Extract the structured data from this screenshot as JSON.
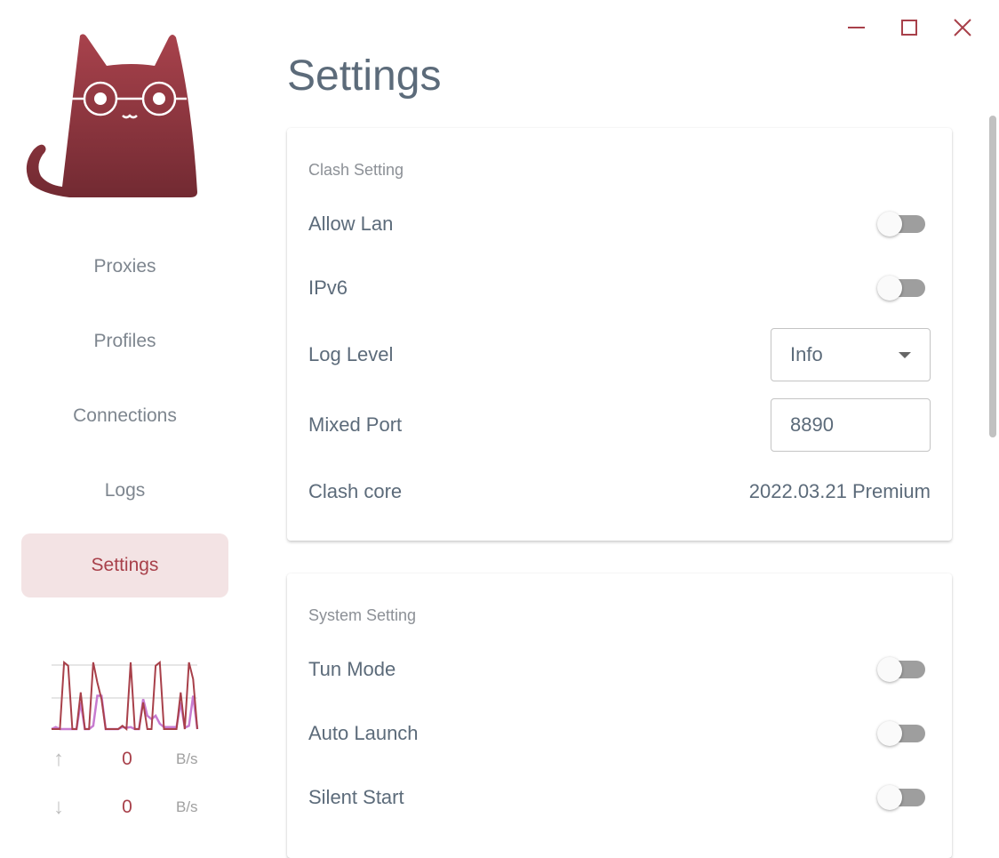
{
  "window": {
    "minimize_icon": "minimize-icon",
    "maximize_icon": "maximize-icon",
    "close_icon": "close-icon"
  },
  "colors": {
    "accent": "#a8404a",
    "nav_active_bg": "#f3e3e4",
    "upload_line": "#a8404a",
    "download_line": "#c77bd0"
  },
  "sidebar": {
    "items": [
      {
        "label": "Proxies"
      },
      {
        "label": "Profiles"
      },
      {
        "label": "Connections"
      },
      {
        "label": "Logs"
      },
      {
        "label": "Settings",
        "active": true
      }
    ],
    "traffic": {
      "upload": {
        "value": "0",
        "unit": "B/s",
        "icon": "arrow-up-icon"
      },
      "download": {
        "value": "0",
        "unit": "B/s",
        "icon": "arrow-down-icon"
      },
      "upload_series": [
        0,
        0,
        0,
        100,
        95,
        0,
        0,
        55,
        0,
        0,
        100,
        70,
        45,
        0,
        0,
        0,
        0,
        5,
        0,
        100,
        0,
        0,
        40,
        0,
        0,
        95,
        100,
        0,
        0,
        0,
        0,
        55,
        0,
        100,
        75,
        0
      ],
      "download_series": [
        0,
        3,
        0,
        0,
        0,
        0,
        0,
        40,
        0,
        0,
        5,
        50,
        50,
        0,
        0,
        0,
        0,
        3,
        2,
        3,
        0,
        0,
        45,
        20,
        15,
        20,
        8,
        3,
        3,
        3,
        3,
        40,
        2,
        5,
        50,
        0
      ]
    }
  },
  "page": {
    "title": "Settings"
  },
  "clash_setting": {
    "title": "Clash Setting",
    "allow_lan": {
      "label": "Allow Lan",
      "on": false
    },
    "ipv6": {
      "label": "IPv6",
      "on": false
    },
    "log_level": {
      "label": "Log Level",
      "value": "Info"
    },
    "mixed_port": {
      "label": "Mixed Port",
      "value": "8890"
    },
    "clash_core": {
      "label": "Clash core",
      "value": "2022.03.21 Premium"
    }
  },
  "system_setting": {
    "title": "System Setting",
    "tun_mode": {
      "label": "Tun Mode",
      "on": false
    },
    "auto_launch": {
      "label": "Auto Launch",
      "on": false
    },
    "silent_start": {
      "label": "Silent Start",
      "on": false
    }
  }
}
